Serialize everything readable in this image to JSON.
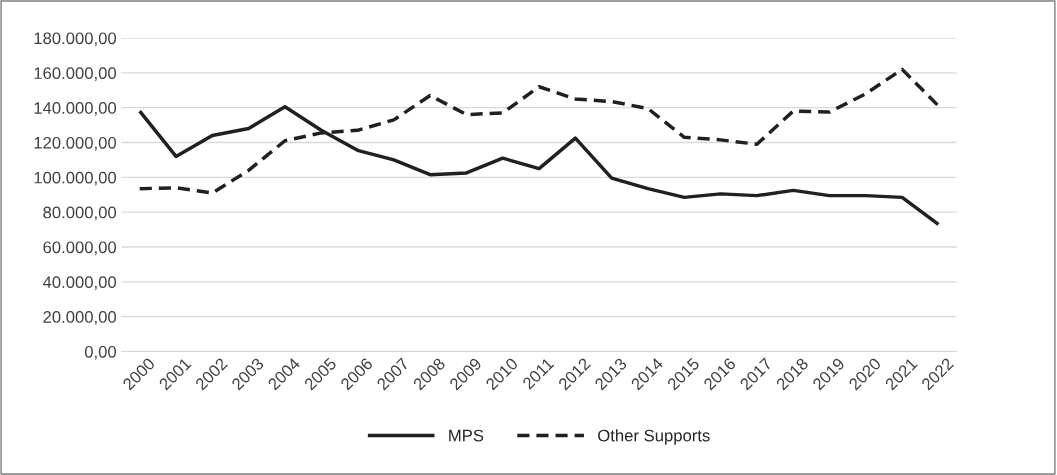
{
  "chart_data": {
    "type": "line",
    "categories": [
      "2000",
      "2001",
      "2002",
      "2003",
      "2004",
      "2005",
      "2006",
      "2007",
      "2008",
      "2009",
      "2010",
      "2011",
      "2012",
      "2013",
      "2014",
      "2015",
      "2016",
      "2017",
      "2018",
      "2019",
      "2020",
      "2021",
      "2022"
    ],
    "series": [
      {
        "name": "MPS",
        "color": "#231f20",
        "line_style": "solid",
        "values": [
          138000,
          112000,
          124000,
          128000,
          140500,
          127000,
          115500,
          110000,
          101500,
          102500,
          111000,
          105000,
          122500,
          99500,
          93500,
          88500,
          90500,
          89500,
          92500,
          89500,
          89500,
          88500,
          73000
        ]
      },
      {
        "name": "Other Supports",
        "color": "#231f20",
        "line_style": "dashed",
        "values": [
          93500,
          94000,
          91000,
          104000,
          121000,
          125500,
          127000,
          133000,
          147000,
          136000,
          137000,
          152000,
          145000,
          143500,
          139500,
          123000,
          121500,
          119000,
          138000,
          137500,
          148000,
          162000,
          141000
        ]
      }
    ],
    "ylim": [
      0,
      180000
    ],
    "yticks": [
      {
        "value": 0,
        "label": "0,00"
      },
      {
        "value": 20000,
        "label": "20.000,00"
      },
      {
        "value": 40000,
        "label": "40.000,00"
      },
      {
        "value": 60000,
        "label": "60.000,00"
      },
      {
        "value": 80000,
        "label": "80.000,00"
      },
      {
        "value": 100000,
        "label": "100.000,00"
      },
      {
        "value": 120000,
        "label": "120.000,00"
      },
      {
        "value": 140000,
        "label": "140.000,00"
      },
      {
        "value": 160000,
        "label": "160.000,00"
      },
      {
        "value": 180000,
        "label": "180.000,00"
      }
    ],
    "grid": "y",
    "legend": "bottom",
    "marker": "none"
  }
}
